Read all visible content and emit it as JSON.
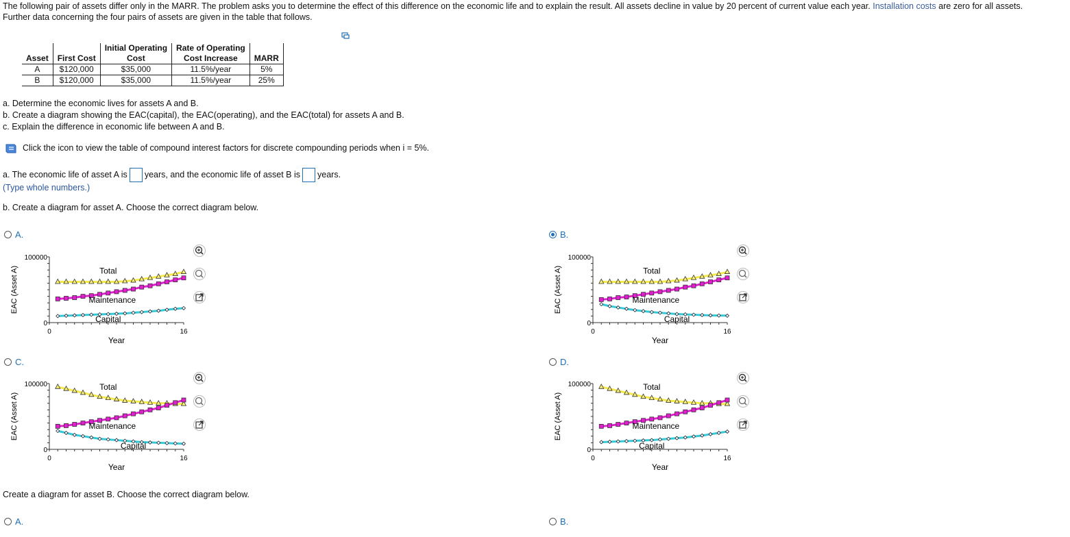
{
  "intro": {
    "part1": "The following pair of assets differ only in the MARR. The problem asks you to determine the effect of this difference on the economic life and to explain the result. All assets decline in value by 20 percent of current value each year.",
    "highlight": "Installation costs",
    "part2": "are zero for all assets.",
    "line2": "Further data concerning the four pairs of assets are given in the table that follows."
  },
  "table": {
    "headers": [
      "Asset",
      "First Cost",
      "Initial Operating Cost",
      "Rate of Operating Cost Increase",
      "MARR"
    ],
    "header_lines": [
      [
        "",
        "Initial Operating",
        "",
        "Rate of Operating",
        ""
      ],
      [
        "Asset",
        "First Cost",
        "Cost",
        "Cost Increase",
        "MARR"
      ]
    ],
    "rows": [
      [
        "A",
        "$120,000",
        "$35,000",
        "11.5%/year",
        "5%"
      ],
      [
        "B",
        "$120,000",
        "$35,000",
        "11.5%/year",
        "25%"
      ]
    ]
  },
  "tasks": {
    "a": "a. Determine the economic lives for assets A and B.",
    "b": "b. Create a diagram showing the EAC(capital), the EAC(operating), and the EAC(total) for assets A and B.",
    "c": "c. Explain the difference in economic life between A and B."
  },
  "info": {
    "text": "Click the icon to view the table of compound interest factors for discrete compounding periods when i = 5%."
  },
  "answer_a": {
    "pre": "a. The economic life of asset A is",
    "mid": "years, and the economic life of asset B is",
    "post": "years.",
    "value_a": "",
    "value_b": "",
    "hint": "(Type whole numbers.)"
  },
  "question_b": "b. Create a diagram for asset A. Choose the correct diagram below.",
  "question_b2": "Create a diagram for asset B. Choose the correct diagram below.",
  "chart_common": {
    "ylabel": "EAC (Asset A)",
    "xlabel": "Year",
    "ytick_top": "100000",
    "ytick_bottom": "0",
    "xtick_left": "0",
    "xtick_right": "16",
    "label_total": "Total",
    "label_maint": "Maintenance",
    "label_capital": "Capital"
  },
  "options_a": [
    {
      "letter": "A.",
      "selected": false
    },
    {
      "letter": "B.",
      "selected": true
    },
    {
      "letter": "C.",
      "selected": false
    },
    {
      "letter": "D.",
      "selected": false
    }
  ],
  "options_b": [
    {
      "letter": "A.",
      "selected": false
    },
    {
      "letter": "B.",
      "selected": false
    }
  ],
  "colors": {
    "total": "#f5e84a",
    "maint": "#e21fd0",
    "capital": "#35c9d6",
    "link": "#1f6fb5"
  },
  "chart_data": [
    {
      "type": "line",
      "option": "A",
      "x": [
        1,
        2,
        3,
        4,
        5,
        6,
        7,
        8,
        9,
        10,
        11,
        12,
        13,
        14,
        15,
        16
      ],
      "xlim": [
        0,
        16
      ],
      "ylim": [
        0,
        100000
      ],
      "series": [
        {
          "name": "Total",
          "values": [
            62000,
            62000,
            62000,
            62000,
            62000,
            62000,
            62000,
            62000,
            63000,
            64000,
            66000,
            68000,
            70000,
            72000,
            74000,
            77000
          ]
        },
        {
          "name": "Maintenance",
          "values": [
            36000,
            37000,
            38000,
            40000,
            41000,
            43000,
            45000,
            47000,
            49000,
            51000,
            54000,
            56000,
            59000,
            62000,
            65000,
            68000
          ]
        },
        {
          "name": "Capital",
          "values": [
            10000,
            10500,
            11000,
            11500,
            12000,
            12500,
            13000,
            13500,
            14000,
            15000,
            16000,
            17000,
            18000,
            19500,
            21000,
            22000
          ]
        }
      ]
    },
    {
      "type": "line",
      "option": "B",
      "x": [
        1,
        2,
        3,
        4,
        5,
        6,
        7,
        8,
        9,
        10,
        11,
        12,
        13,
        14,
        15,
        16
      ],
      "xlim": [
        0,
        16
      ],
      "ylim": [
        0,
        100000
      ],
      "series": [
        {
          "name": "Total",
          "values": [
            62000,
            62000,
            62000,
            62000,
            62000,
            62000,
            62000,
            62000,
            63000,
            64000,
            66000,
            68000,
            70000,
            72000,
            74000,
            77000
          ]
        },
        {
          "name": "Maintenance",
          "values": [
            35000,
            36000,
            38000,
            39000,
            41000,
            43000,
            45000,
            47000,
            49000,
            51000,
            54000,
            56000,
            59000,
            62000,
            65000,
            68000
          ]
        },
        {
          "name": "Capital",
          "values": [
            28000,
            25000,
            23000,
            21000,
            19000,
            17500,
            16000,
            15000,
            14000,
            13000,
            12500,
            12000,
            11500,
            11000,
            10800,
            10500
          ]
        }
      ]
    },
    {
      "type": "line",
      "option": "C",
      "x": [
        1,
        2,
        3,
        4,
        5,
        6,
        7,
        8,
        9,
        10,
        11,
        12,
        13,
        14,
        15,
        16
      ],
      "xlim": [
        0,
        16
      ],
      "ylim": [
        0,
        100000
      ],
      "series": [
        {
          "name": "Total",
          "values": [
            95000,
            92000,
            89000,
            86000,
            83000,
            80000,
            78000,
            76000,
            74000,
            73000,
            72000,
            71000,
            70000,
            70000,
            69000,
            69000
          ]
        },
        {
          "name": "Maintenance",
          "values": [
            35000,
            36000,
            38000,
            40000,
            42000,
            44000,
            46000,
            48000,
            51000,
            54000,
            57000,
            60000,
            63000,
            67000,
            71000,
            75000
          ]
        },
        {
          "name": "Capital",
          "values": [
            28000,
            25000,
            22000,
            20000,
            18000,
            16000,
            15000,
            14000,
            13000,
            12000,
            11000,
            10500,
            10000,
            9500,
            9000,
            8500
          ]
        }
      ]
    },
    {
      "type": "line",
      "option": "D",
      "x": [
        1,
        2,
        3,
        4,
        5,
        6,
        7,
        8,
        9,
        10,
        11,
        12,
        13,
        14,
        15,
        16
      ],
      "xlim": [
        0,
        16
      ],
      "ylim": [
        0,
        100000
      ],
      "series": [
        {
          "name": "Total",
          "values": [
            95000,
            92000,
            89000,
            86000,
            83000,
            80000,
            78000,
            76000,
            74000,
            73000,
            72000,
            71000,
            70000,
            70000,
            69000,
            69000
          ]
        },
        {
          "name": "Maintenance",
          "values": [
            35000,
            36000,
            38000,
            40000,
            42000,
            44000,
            46000,
            48000,
            51000,
            54000,
            57000,
            60000,
            63000,
            67000,
            71000,
            75000
          ]
        },
        {
          "name": "Capital",
          "values": [
            11000,
            11500,
            12000,
            12500,
            13000,
            13500,
            14000,
            15000,
            16000,
            17000,
            18000,
            19500,
            21000,
            23000,
            25000,
            27000
          ]
        }
      ]
    }
  ]
}
